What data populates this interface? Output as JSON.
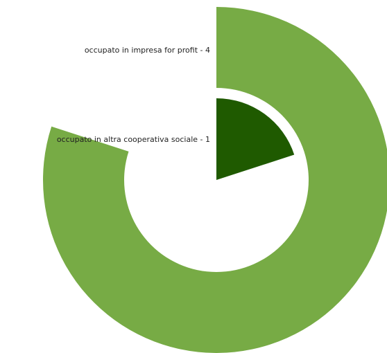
{
  "chart_data": {
    "type": "pie",
    "subtype": "radial-bar",
    "max_value": 5,
    "series": [
      {
        "name": "occupato in impresa for profit - 4",
        "value": 4,
        "color": "#77ab45"
      },
      {
        "name": "occupato in altra cooperativa sociale - 1",
        "value": 1,
        "color": "#1f5a00"
      }
    ]
  }
}
